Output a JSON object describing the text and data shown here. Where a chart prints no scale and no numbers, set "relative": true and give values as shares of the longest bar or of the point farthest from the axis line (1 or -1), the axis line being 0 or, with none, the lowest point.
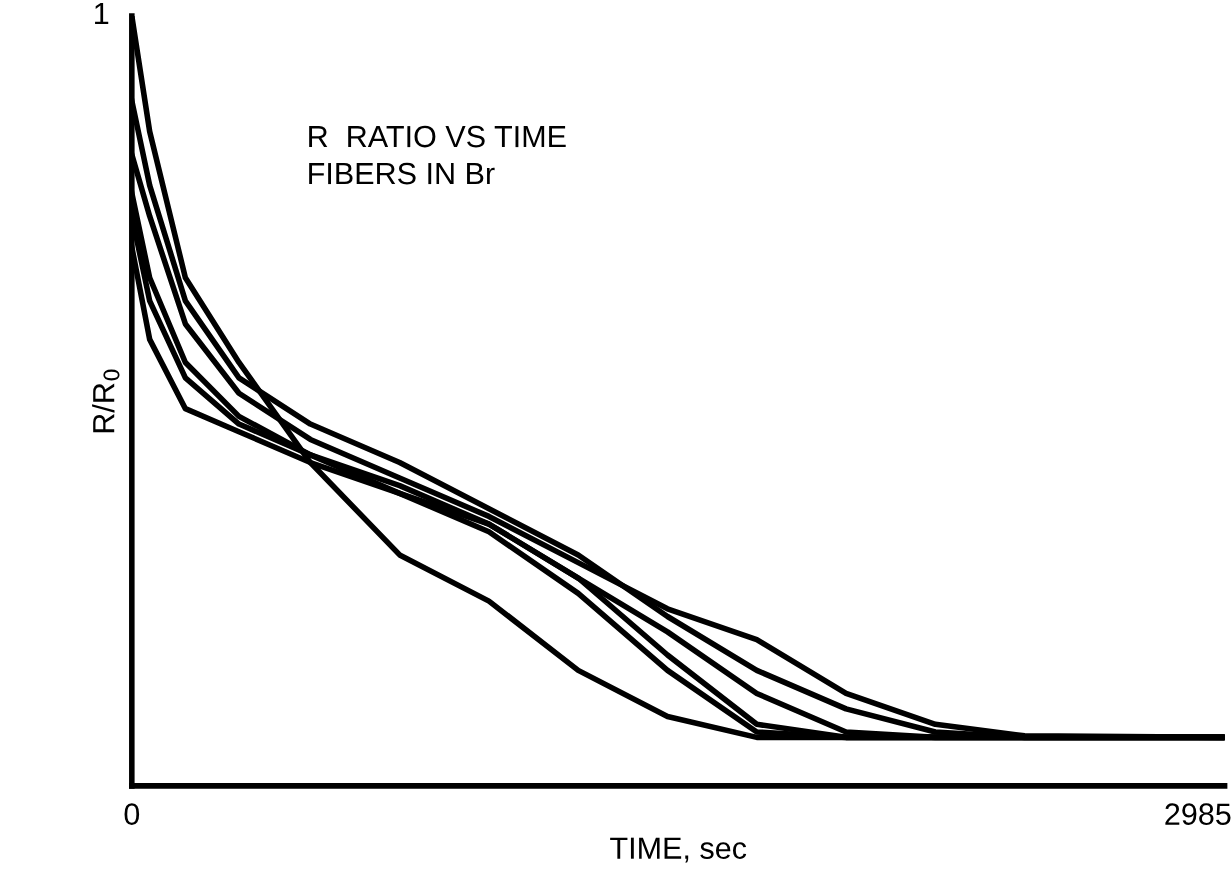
{
  "chart_data": {
    "type": "line",
    "xlabel": "TIME, sec",
    "ylabel": "R/R$_{0}$",
    "annotations": [
      "R  RATIO VS TIME",
      "FIBERS IN Br",
      "1"
    ],
    "relative": true,
    "x": [
      0,
      50,
      150,
      300,
      500,
      750,
      1000,
      1250,
      1500,
      1750,
      2000,
      2250,
      2500,
      3060
    ],
    "series": [
      {
        "color": "#000000",
        "values": [
          1.0,
          0.85,
          0.66,
          0.55,
          0.42,
          0.3,
          0.24,
          0.15,
          0.09,
          0.063,
          0.063,
          0.063,
          0.063,
          0.063
        ]
      },
      {
        "color": "#000000",
        "values": [
          0.89,
          0.78,
          0.63,
          0.53,
          0.47,
          0.42,
          0.36,
          0.3,
          0.22,
          0.15,
          0.1,
          0.07,
          0.063,
          0.063
        ]
      },
      {
        "color": "#000000",
        "values": [
          0.82,
          0.74,
          0.6,
          0.51,
          0.45,
          0.4,
          0.35,
          0.29,
          0.23,
          0.19,
          0.12,
          0.08,
          0.065,
          0.063
        ]
      },
      {
        "color": "#000000",
        "values": [
          0.77,
          0.66,
          0.55,
          0.48,
          0.43,
          0.39,
          0.34,
          0.27,
          0.17,
          0.08,
          0.063,
          0.063,
          0.063,
          0.063
        ]
      },
      {
        "color": "#000000",
        "values": [
          0.74,
          0.63,
          0.53,
          0.47,
          0.43,
          0.38,
          0.33,
          0.25,
          0.15,
          0.07,
          0.063,
          0.063,
          0.063,
          0.063
        ]
      },
      {
        "color": "#000000",
        "values": [
          0.7,
          0.58,
          0.49,
          0.46,
          0.42,
          0.38,
          0.34,
          0.27,
          0.2,
          0.12,
          0.07,
          0.063,
          0.063,
          0.063
        ]
      }
    ],
    "xlim": [
      0,
      3060
    ],
    "xticks": [
      0,
      2985
    ],
    "grid": false,
    "legend": false,
    "marker": "none",
    "line_style": "solid"
  }
}
